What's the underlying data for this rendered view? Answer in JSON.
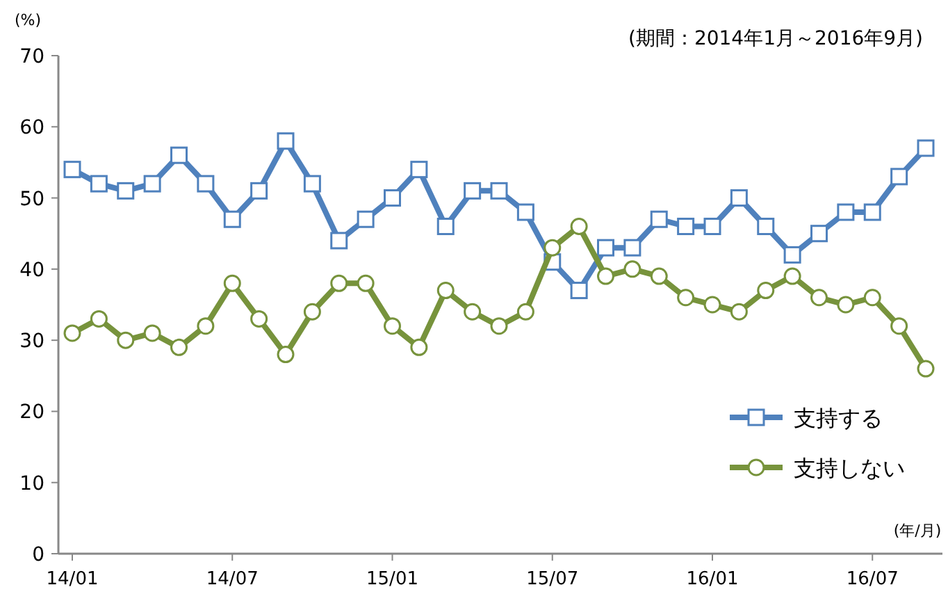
{
  "chart_data": {
    "type": "line",
    "subtitle": "(期間：2014年1月～2016年9月)",
    "ylabel": "(%)",
    "xlabel": "(年/月)",
    "categories": [
      "14/01",
      null,
      null,
      null,
      null,
      null,
      "14/07",
      null,
      null,
      null,
      null,
      null,
      "15/01",
      null,
      null,
      null,
      null,
      null,
      "15/07",
      null,
      null,
      null,
      null,
      null,
      "16/01",
      null,
      null,
      null,
      null,
      null,
      "16/07",
      null,
      null
    ],
    "series": [
      {
        "name": "支持する",
        "color": "#4f81bd",
        "marker": "square",
        "values": [
          54,
          52,
          51,
          52,
          56,
          52,
          47,
          51,
          58,
          52,
          44,
          47,
          50,
          54,
          46,
          51,
          51,
          48,
          41,
          37,
          43,
          43,
          47,
          46,
          46,
          50,
          46,
          42,
          45,
          48,
          48,
          53,
          57
        ]
      },
      {
        "name": "支持しない",
        "color": "#77933c",
        "marker": "circle",
        "values": [
          31,
          33,
          30,
          31,
          29,
          32,
          38,
          33,
          28,
          34,
          38,
          38,
          32,
          29,
          37,
          34,
          32,
          34,
          43,
          46,
          39,
          40,
          39,
          36,
          35,
          34,
          37,
          39,
          36,
          35,
          36,
          32,
          26
        ]
      }
    ],
    "ylim": [
      0,
      70
    ],
    "yticks": [
      0,
      10,
      20,
      30,
      40,
      50,
      60,
      70
    ],
    "grid": false,
    "legend": "bottom right",
    "line_style": "solid"
  }
}
